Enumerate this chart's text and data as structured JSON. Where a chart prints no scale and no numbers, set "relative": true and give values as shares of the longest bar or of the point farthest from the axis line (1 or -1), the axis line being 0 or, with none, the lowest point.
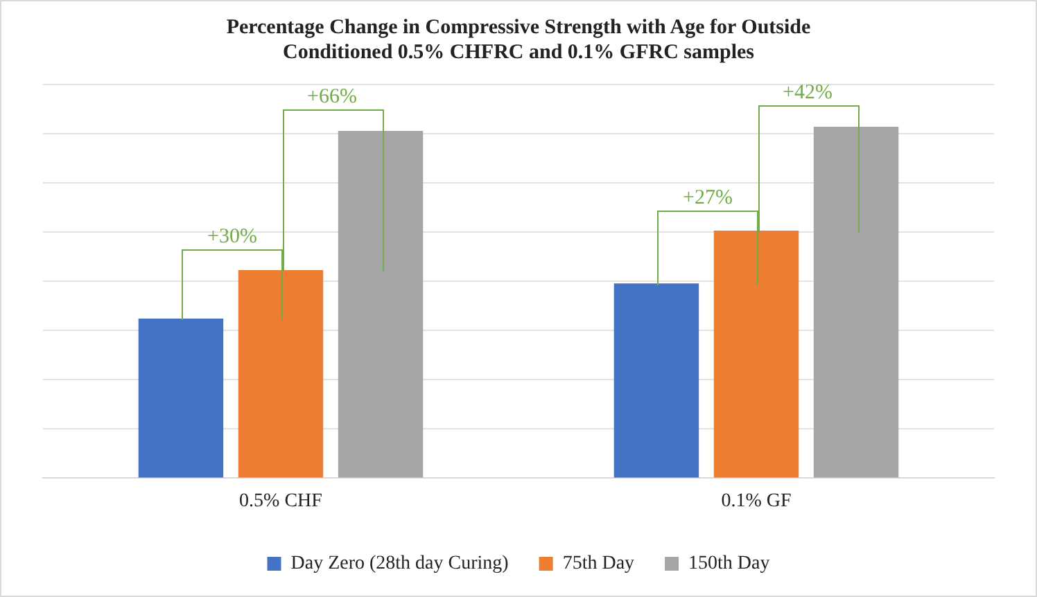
{
  "chart_data": {
    "type": "bar",
    "title": "Percentage Change in Compressive Strength with Age for Outside Conditioned 0.5% CHFRC and 0.1% GFRC samples",
    "categories": [
      "0.5% CHF",
      "0.1% GF"
    ],
    "series": [
      {
        "name": "Day Zero (28th day Curing)",
        "color": "#4472c4",
        "values": [
          0.454,
          0.554
        ]
      },
      {
        "name": "75th Day",
        "color": "#ed7d31",
        "values": [
          0.592,
          0.704
        ]
      },
      {
        "name": "150th Day",
        "color": "#a5a5a5",
        "values": [
          0.988,
          1
        ]
      }
    ],
    "relative": true,
    "grid": "y",
    "legend": "bottom",
    "annotations": [
      "+30%",
      "+66%",
      "+27%",
      "+42%"
    ]
  }
}
